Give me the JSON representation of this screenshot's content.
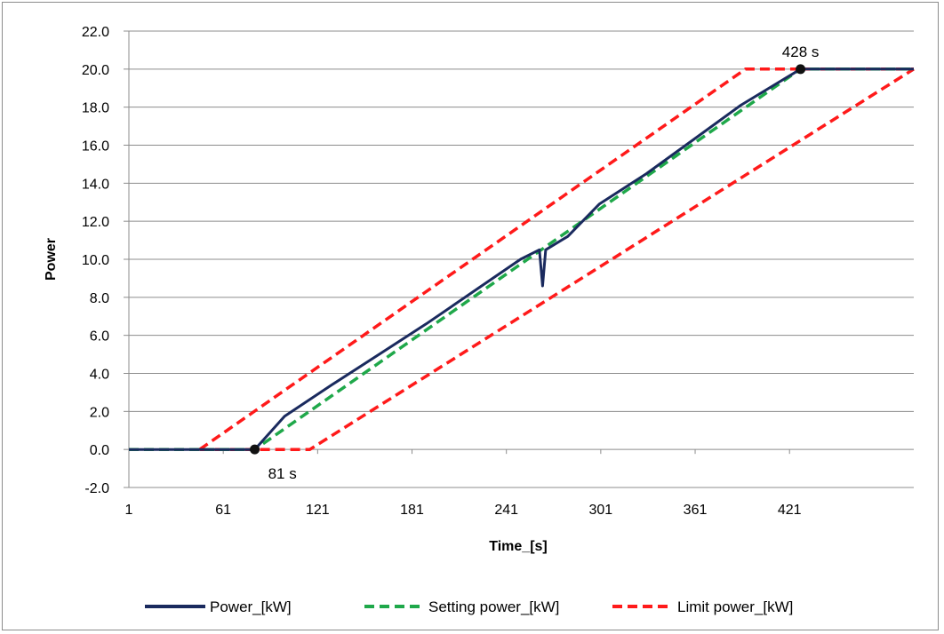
{
  "chart_data": {
    "type": "line",
    "title": "",
    "xlabel": "Time_[s]",
    "ylabel": "Power",
    "xlim": [
      1,
      500
    ],
    "ylim": [
      -2.0,
      22.0
    ],
    "x_ticks": [
      "1",
      "61",
      "121",
      "181",
      "241",
      "301",
      "361",
      "421"
    ],
    "y_ticks": [
      "-2.0",
      "0.0",
      "2.0",
      "4.0",
      "6.0",
      "8.0",
      "10.0",
      "12.0",
      "14.0",
      "16.0",
      "18.0",
      "20.0",
      "22.0"
    ],
    "grid": "horizontal",
    "legend_position": "bottom",
    "series": [
      {
        "name": "Power_[kW]",
        "color": "#1a2a5e",
        "style": "solid",
        "x": [
          1,
          81,
          100,
          130,
          160,
          190,
          220,
          250,
          262,
          264,
          266,
          280,
          300,
          330,
          360,
          390,
          420,
          428,
          500
        ],
        "y": [
          0.0,
          0.0,
          1.75,
          3.4,
          5.0,
          6.6,
          8.3,
          10.0,
          10.5,
          8.6,
          10.5,
          11.2,
          12.9,
          14.5,
          16.3,
          18.1,
          19.6,
          20.0,
          20.0
        ]
      },
      {
        "name": "Setting power_[kW]",
        "color": "#1fa84a",
        "style": "dashed",
        "x": [
          1,
          81,
          428,
          500
        ],
        "y": [
          0.0,
          0.0,
          20.0,
          20.0
        ]
      },
      {
        "name": "Limit power_[kW]",
        "color": "#ff1a1a",
        "style": "dashed",
        "upper": {
          "x": [
            46,
            393,
            500
          ],
          "y": [
            0.0,
            20.0,
            20.0
          ]
        },
        "lower": {
          "x": [
            46,
            116,
            500
          ],
          "y": [
            0.0,
            0.0,
            20.0
          ]
        }
      }
    ],
    "annotations": [
      {
        "label": "81 s",
        "x": 81,
        "y": 0.0
      },
      {
        "label": "428 s",
        "x": 428,
        "y": 20.0
      }
    ]
  }
}
